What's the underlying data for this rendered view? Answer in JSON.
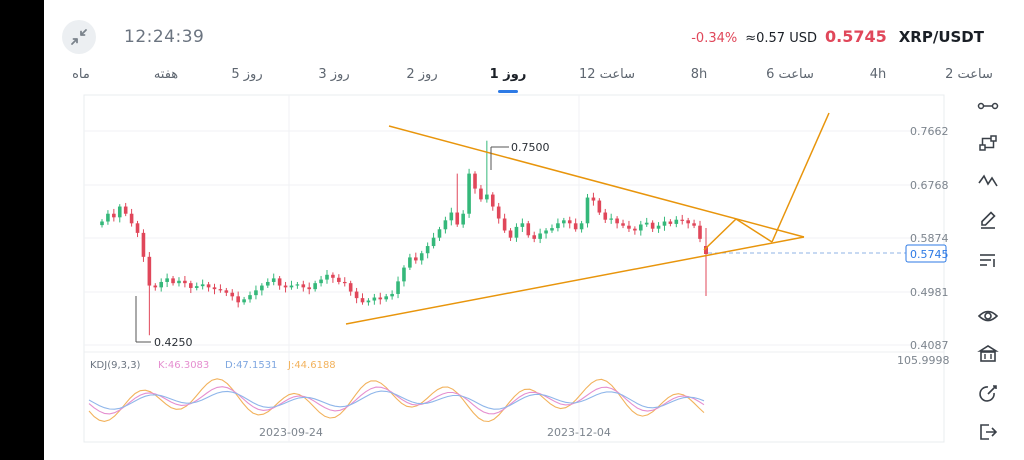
{
  "status": {
    "time": "12:24:39"
  },
  "ticker": {
    "change": "-0.34%",
    "usd_value": "≈0.57 USD",
    "price": "0.5745",
    "pair": "XRP/USDT"
  },
  "tabs": [
    {
      "label": "ماه"
    },
    {
      "label": "هفته"
    },
    {
      "label": "5 روز"
    },
    {
      "label": "3 روز"
    },
    {
      "label": "2 روز"
    },
    {
      "label": "1 روز",
      "active": true
    },
    {
      "label": "12 ساعت"
    },
    {
      "label": "8h"
    },
    {
      "label": "6 ساعت"
    },
    {
      "label": "4h"
    },
    {
      "label": "2 ساعت"
    }
  ],
  "chart_data": {
    "type": "candlestick",
    "y_ticks": [
      "0.7662",
      "0.6768",
      "0.5874",
      "0.4981",
      "0.4087"
    ],
    "current_price_label": "0.5745",
    "annotations": {
      "high": "0.7500",
      "low": "0.4250"
    },
    "x_ticks": [
      "2023-09-24",
      "2023-12-04"
    ],
    "indicator": {
      "name": "KDJ(9,3,3)",
      "k": "K:46.3083",
      "d": "D:47.1531",
      "j": "J:44.6188",
      "scale_max": "105.9998"
    },
    "colors": {
      "up": "#35b87a",
      "down": "#e0475a",
      "trendline": "#e8950c",
      "k": "#e58fd0",
      "d": "#8fb6ea",
      "j": "#f2b25c"
    }
  },
  "toolbar_icons": [
    "line-tool-icon",
    "path-tool-icon",
    "wave-tool-icon",
    "pen-tool-icon",
    "layers-tool-icon",
    "eye-icon",
    "bank-icon",
    "share-icon",
    "exit-icon"
  ]
}
